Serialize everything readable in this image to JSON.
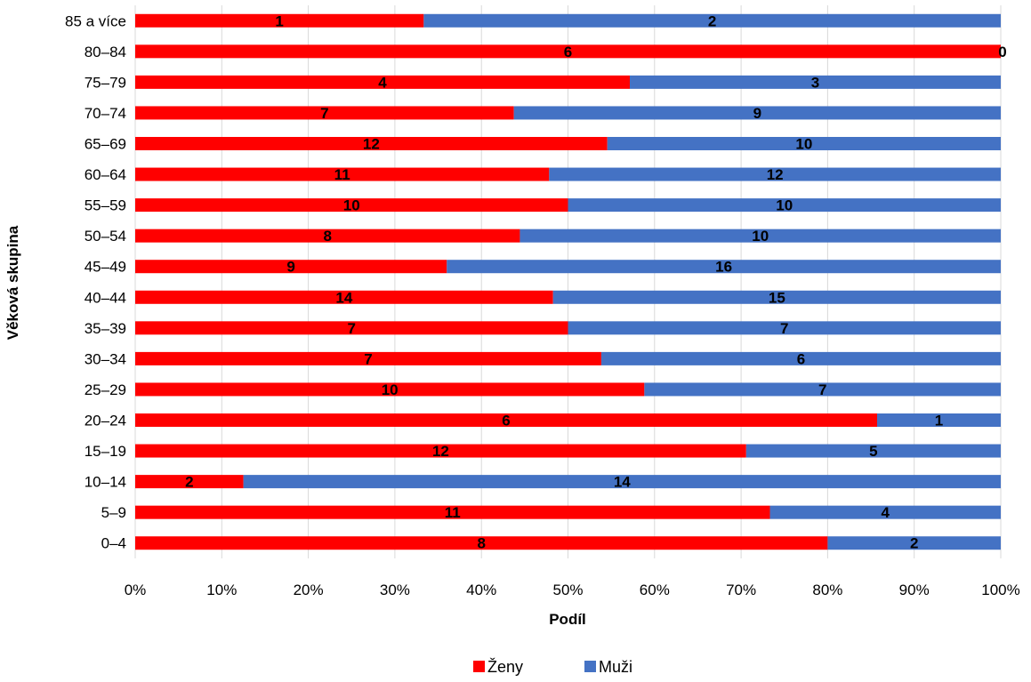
{
  "chart_data": {
    "type": "bar",
    "orientation": "horizontal",
    "stacking": "percent",
    "categories": [
      "85 a více",
      "80–84",
      "75–79",
      "70–74",
      "65–69",
      "60–64",
      "55–59",
      "50–54",
      "45–49",
      "40–44",
      "35–39",
      "30–34",
      "25–29",
      "20–24",
      "15–19",
      "10–14",
      "5–9",
      "0–4"
    ],
    "series": [
      {
        "name": "Ženy",
        "color": "#ff0000",
        "values": [
          1,
          6,
          4,
          7,
          12,
          11,
          10,
          8,
          9,
          14,
          7,
          7,
          10,
          6,
          12,
          2,
          11,
          8
        ]
      },
      {
        "name": "Muži",
        "color": "#4472c4",
        "values": [
          2,
          0,
          3,
          9,
          10,
          12,
          10,
          10,
          16,
          15,
          7,
          6,
          7,
          1,
          5,
          14,
          4,
          2
        ]
      }
    ],
    "x_ticks": [
      "0%",
      "10%",
      "20%",
      "30%",
      "40%",
      "50%",
      "60%",
      "70%",
      "80%",
      "90%",
      "100%"
    ],
    "xlim": [
      0,
      1
    ],
    "xlabel": "Podíl",
    "ylabel": "Věková skupina",
    "grid": "vertical",
    "grid_color": "#d9d9d9",
    "legend_position": "bottom",
    "data_labels": "values"
  }
}
